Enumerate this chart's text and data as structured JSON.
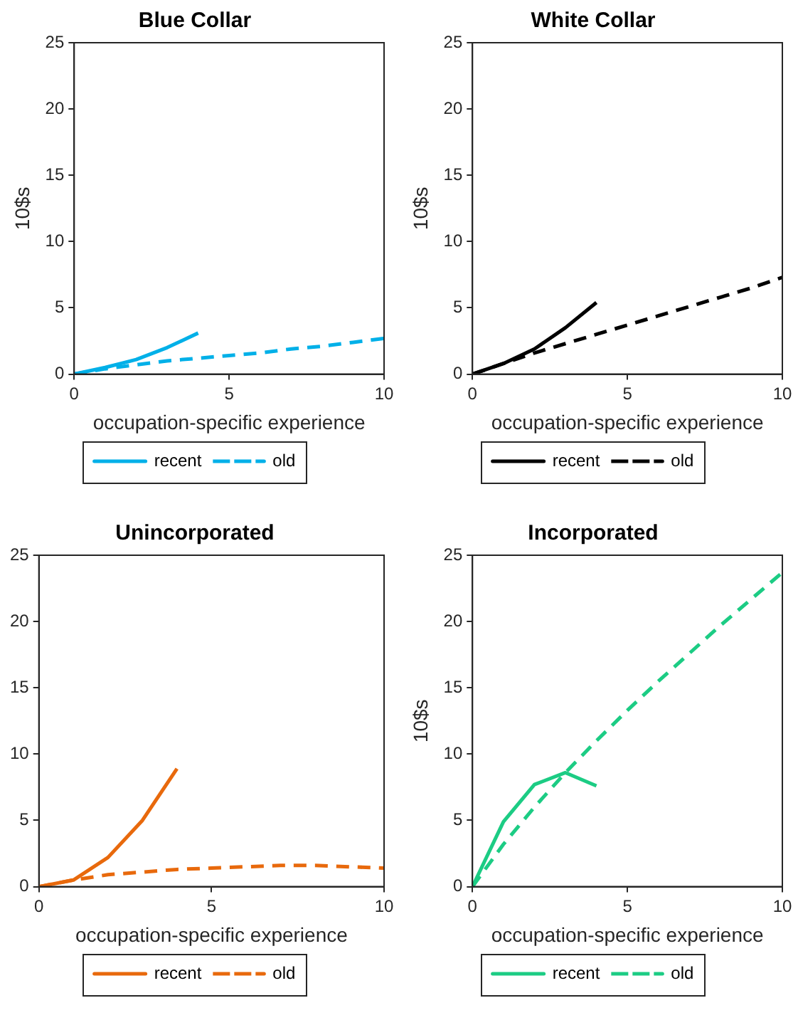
{
  "chart_data": [
    {
      "type": "line",
      "title": "Blue Collar",
      "xlabel": "occupation-specific experience",
      "ylabel": "10$s",
      "xlim": [
        0,
        10
      ],
      "xticks": [
        0,
        5,
        10
      ],
      "ylim": [
        0,
        25
      ],
      "yticks": [
        0,
        5,
        10,
        15,
        20,
        25
      ],
      "grid": false,
      "legend": "bottom",
      "series": [
        {
          "name": "recent",
          "color": "#00b0e8",
          "line_style": "solid",
          "x": [
            0,
            1,
            2,
            3,
            4
          ],
          "values": [
            0,
            0.5,
            1.1,
            2.0,
            3.1
          ]
        },
        {
          "name": "old",
          "color": "#00b0e8",
          "line_style": "dashed",
          "x": [
            0,
            1,
            2,
            3,
            4,
            5,
            6,
            7,
            8,
            9,
            10
          ],
          "values": [
            0,
            0.4,
            0.7,
            1.0,
            1.2,
            1.4,
            1.6,
            1.9,
            2.1,
            2.4,
            2.7
          ]
        }
      ]
    },
    {
      "type": "line",
      "title": "White Collar",
      "xlabel": "occupation-specific experience",
      "ylabel": "10$s",
      "xlim": [
        0,
        10
      ],
      "xticks": [
        0,
        5,
        10
      ],
      "ylim": [
        0,
        25
      ],
      "yticks": [
        0,
        5,
        10,
        15,
        20,
        25
      ],
      "grid": false,
      "legend": "bottom",
      "series": [
        {
          "name": "recent",
          "color": "#000000",
          "line_style": "solid",
          "x": [
            0,
            1,
            2,
            3,
            4
          ],
          "values": [
            0,
            0.8,
            1.9,
            3.5,
            5.4
          ]
        },
        {
          "name": "old",
          "color": "#000000",
          "line_style": "dashed",
          "x": [
            0,
            1,
            2,
            3,
            4,
            5,
            6,
            7,
            8,
            9,
            10
          ],
          "values": [
            0,
            0.8,
            1.6,
            2.3,
            3.0,
            3.7,
            4.4,
            5.1,
            5.8,
            6.5,
            7.3
          ]
        }
      ]
    },
    {
      "type": "line",
      "title": "Unincorporated",
      "xlabel": "occupation-specific experience",
      "xlim": [
        0,
        10
      ],
      "xticks": [
        0,
        5,
        10
      ],
      "ylim": [
        0,
        25
      ],
      "yticks": [
        0,
        5,
        10,
        15,
        20,
        25
      ],
      "grid": false,
      "legend": "bottom",
      "series": [
        {
          "name": "recent",
          "color": "#e8690c",
          "line_style": "solid",
          "x": [
            0,
            1,
            2,
            3,
            4
          ],
          "values": [
            0,
            0.5,
            2.2,
            5.0,
            8.9
          ]
        },
        {
          "name": "old",
          "color": "#e8690c",
          "line_style": "dashed",
          "x": [
            0,
            1,
            2,
            3,
            4,
            5,
            6,
            7,
            8,
            9,
            10
          ],
          "values": [
            0,
            0.5,
            0.9,
            1.1,
            1.3,
            1.4,
            1.5,
            1.6,
            1.6,
            1.5,
            1.4
          ]
        }
      ]
    },
    {
      "type": "line",
      "title": "Incorporated",
      "xlabel": "occupation-specific experience",
      "ylabel": "10$s",
      "xlim": [
        0,
        10
      ],
      "xticks": [
        0,
        5,
        10
      ],
      "ylim": [
        0,
        25
      ],
      "yticks": [
        0,
        5,
        10,
        15,
        20,
        25
      ],
      "grid": false,
      "legend": "bottom",
      "series": [
        {
          "name": "recent",
          "color": "#1ccc84",
          "line_style": "solid",
          "x": [
            0,
            1,
            2,
            3,
            4
          ],
          "values": [
            0,
            4.9,
            7.7,
            8.6,
            7.6
          ]
        },
        {
          "name": "old",
          "color": "#1ccc84",
          "line_style": "dashed",
          "x": [
            0,
            1,
            2,
            3,
            4,
            5,
            6,
            7,
            8,
            9,
            10
          ],
          "values": [
            0,
            3.2,
            6.0,
            8.6,
            11.0,
            13.3,
            15.5,
            17.6,
            19.7,
            21.7,
            23.7
          ]
        }
      ]
    }
  ]
}
